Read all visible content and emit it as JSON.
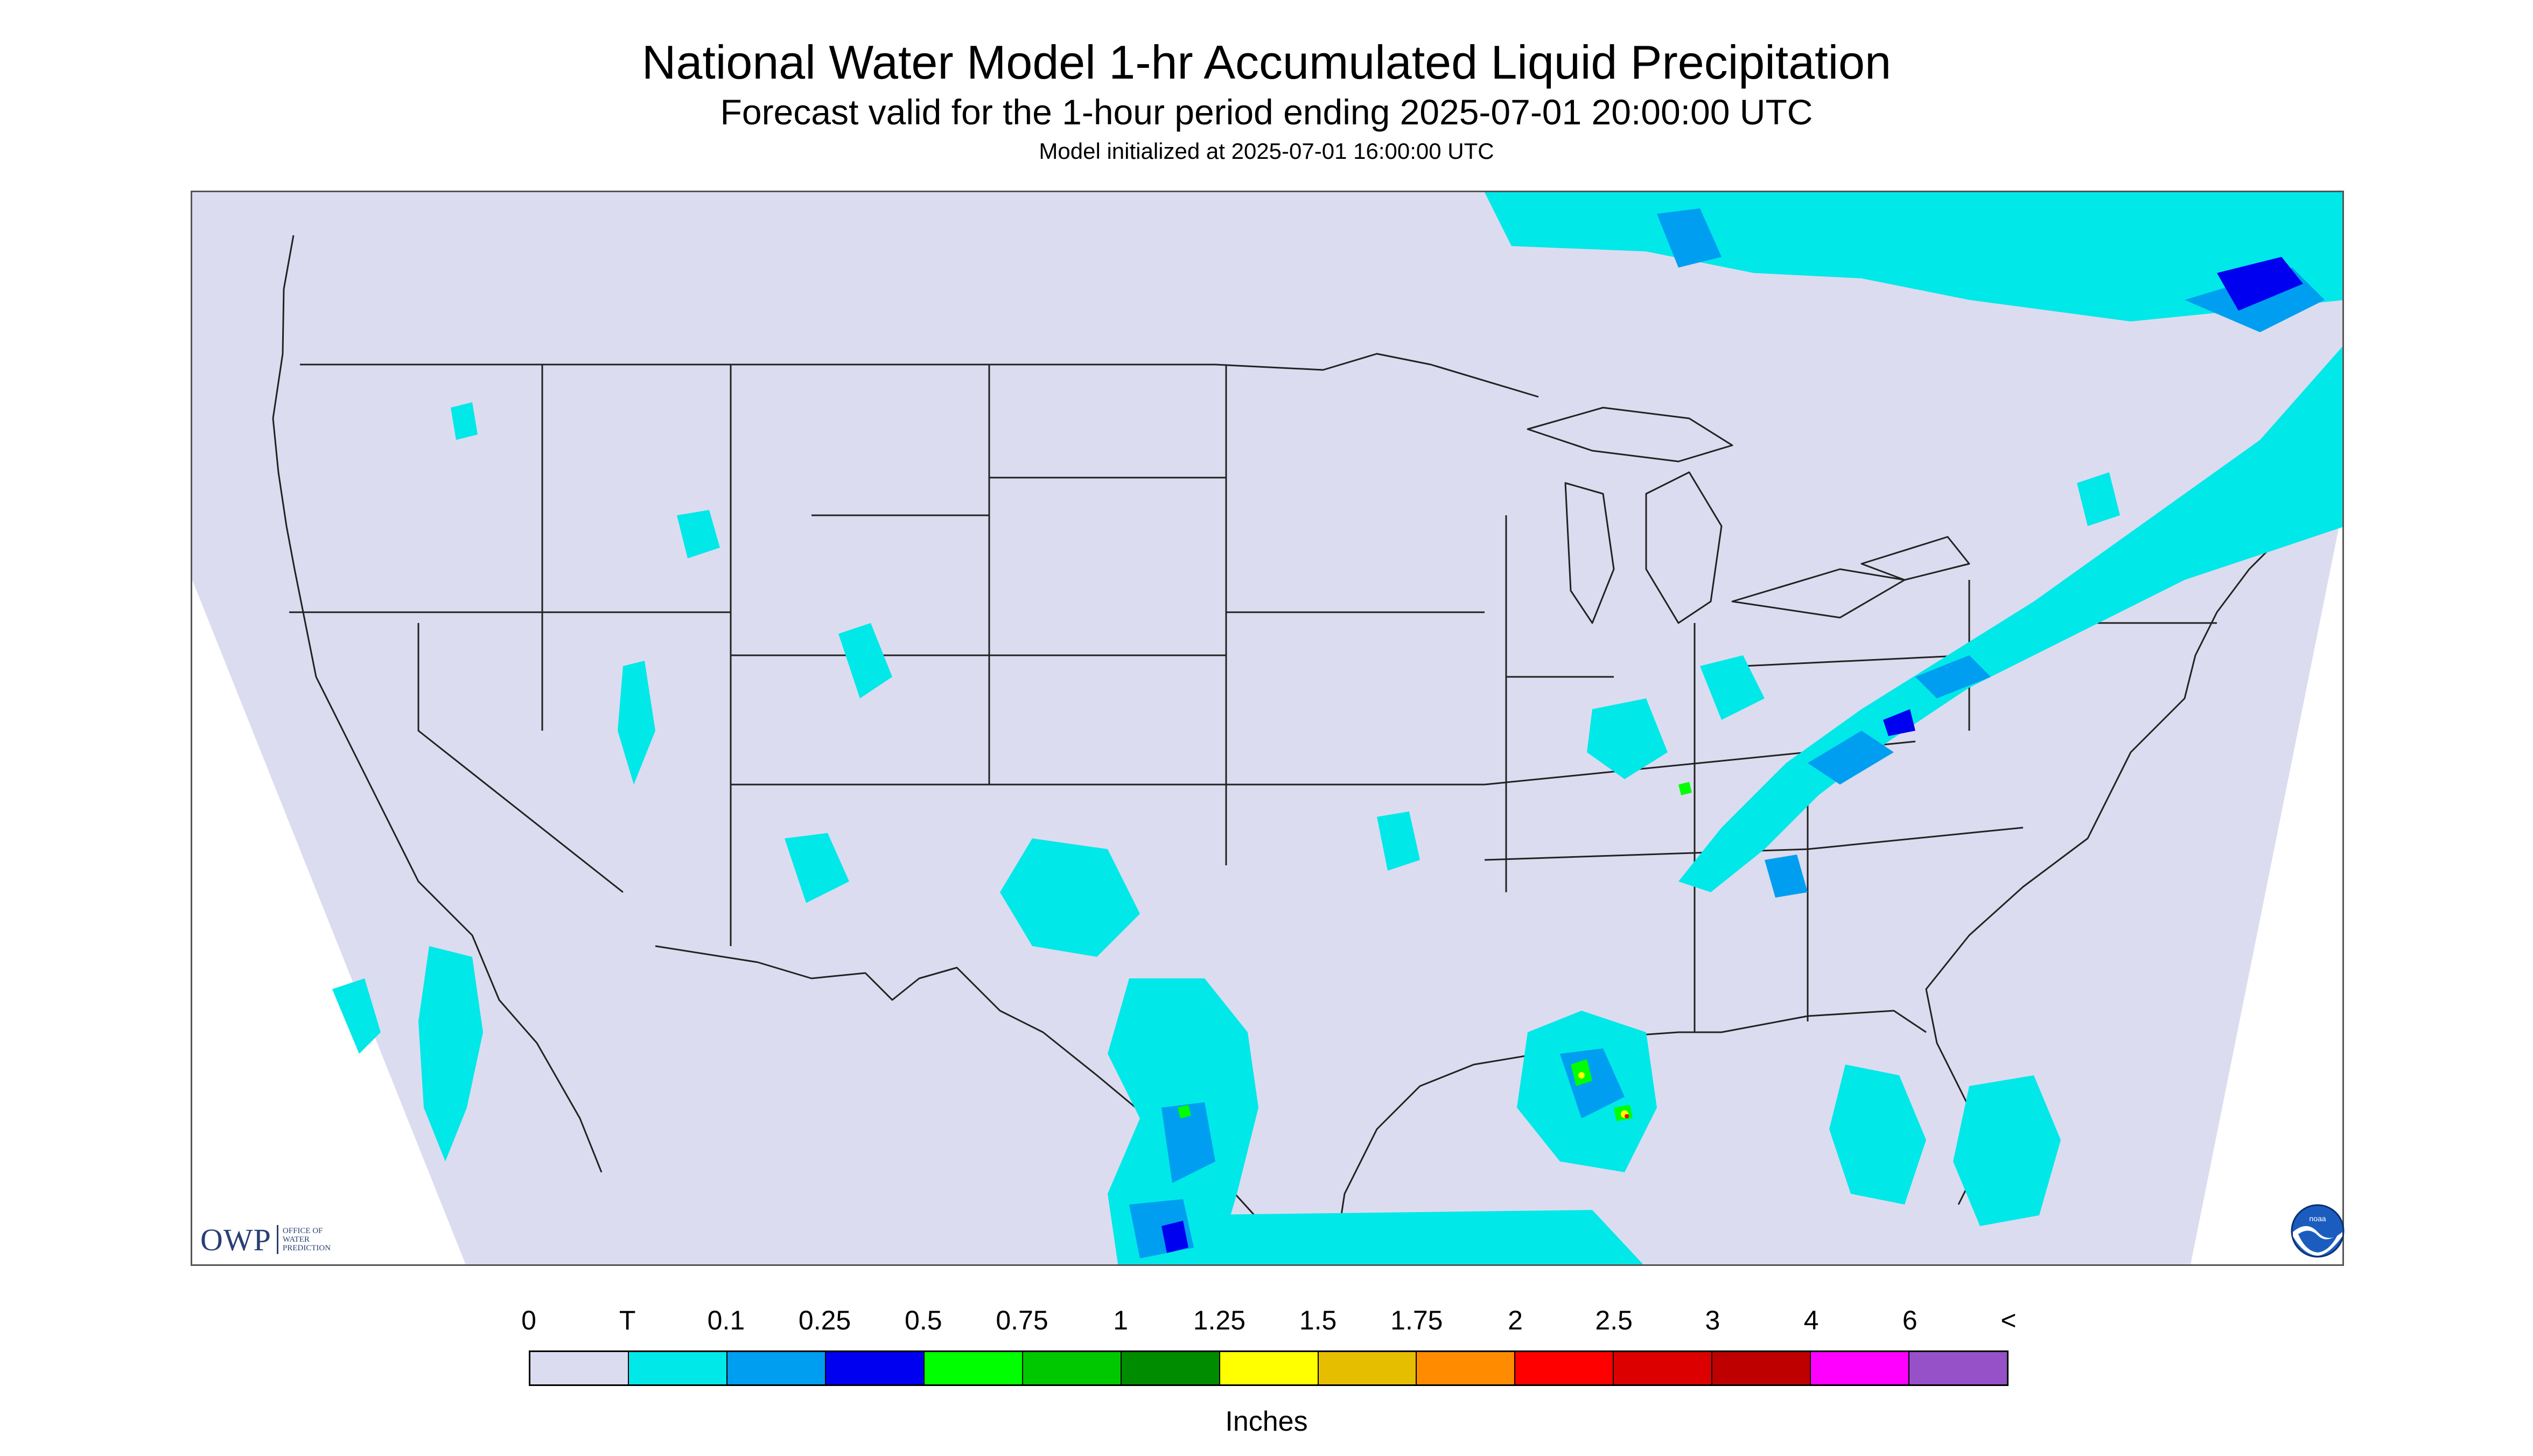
{
  "header": {
    "title": "National Water Model 1-hr Accumulated Liquid Precipitation",
    "subtitle": "Forecast valid for the 1-hour period ending 2025-07-01 20:00:00 UTC",
    "initialized": "Model initialized at 2025-07-01 16:00:00 UTC"
  },
  "map": {
    "background_color": "#dcdcf0",
    "outside_domain_color": "#ffffff",
    "border_color": "#222222",
    "precip_colors": {
      "trace": "#00e8e8",
      "0.1": "#009ef0",
      "0.25": "#0000f0",
      "0.5": "#00ff00",
      "1.5": "#ffff00",
      "2": "#ff0000"
    }
  },
  "logos": {
    "owp_letters": "OWP",
    "owp_line1": "OFFICE OF",
    "owp_line2": "WATER",
    "owp_line3": "PREDICTION",
    "noaa_text": "noaa"
  },
  "legend": {
    "tick_labels": [
      "0",
      "T",
      "0.1",
      "0.25",
      "0.5",
      "0.75",
      "1",
      "1.25",
      "1.5",
      "1.75",
      "2",
      "2.5",
      "3",
      "4",
      "6",
      "<"
    ],
    "colors": [
      "#dcdcf0",
      "#00e8e8",
      "#009ef0",
      "#0000f0",
      "#00ff00",
      "#00c800",
      "#008c00",
      "#ffff00",
      "#e6be00",
      "#ff8c00",
      "#ff0000",
      "#dc0000",
      "#be0000",
      "#ff00ff",
      "#9650c8"
    ],
    "units": "Inches"
  }
}
